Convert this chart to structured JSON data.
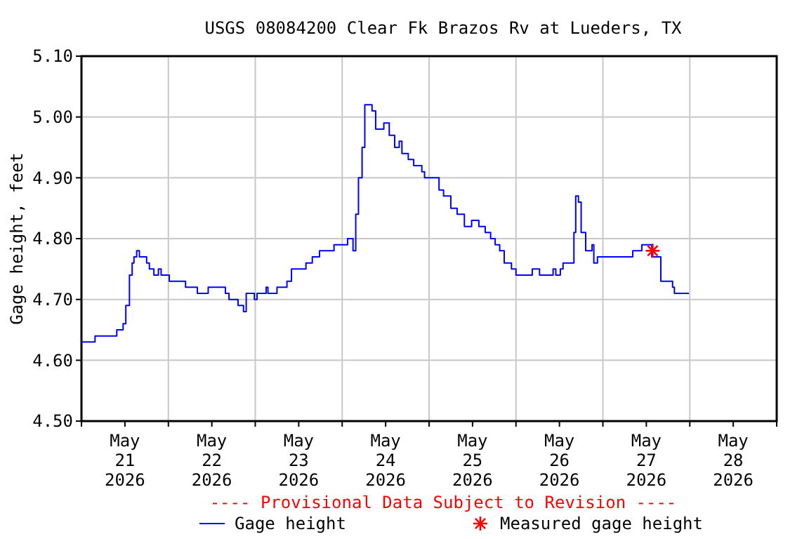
{
  "chart_data": {
    "type": "step",
    "title": "USGS 08084200 Clear Fk Brazos Rv at Lueders, TX",
    "ylabel": "Gage height, feet",
    "annotations": [
      "---- Provisional Data Subject to Revision ----"
    ],
    "xlim": [
      "2026-05-21T00:00",
      "2026-05-29T00:00"
    ],
    "xticks": [
      {
        "value": "2026-05-21T00:00",
        "label": null
      },
      {
        "value": "2026-05-21T12:00",
        "label": "May\n21\n2026"
      },
      {
        "value": "2026-05-22T00:00",
        "label": null
      },
      {
        "value": "2026-05-22T12:00",
        "label": "May\n22\n2026"
      },
      {
        "value": "2026-05-23T00:00",
        "label": null
      },
      {
        "value": "2026-05-23T12:00",
        "label": "May\n23\n2026"
      },
      {
        "value": "2026-05-24T00:00",
        "label": null
      },
      {
        "value": "2026-05-24T12:00",
        "label": "May\n24\n2026"
      },
      {
        "value": "2026-05-25T00:00",
        "label": null
      },
      {
        "value": "2026-05-25T12:00",
        "label": "May\n25\n2026"
      },
      {
        "value": "2026-05-26T00:00",
        "label": null
      },
      {
        "value": "2026-05-26T12:00",
        "label": "May\n26\n2026"
      },
      {
        "value": "2026-05-27T00:00",
        "label": null
      },
      {
        "value": "2026-05-27T12:00",
        "label": "May\n27\n2026"
      },
      {
        "value": "2026-05-28T00:00",
        "label": null
      },
      {
        "value": "2026-05-28T12:00",
        "label": "May\n28\n2026"
      },
      {
        "value": "2026-05-29T00:00",
        "label": null
      }
    ],
    "ylim": [
      4.5,
      5.1
    ],
    "yticks": [
      {
        "value": 4.5,
        "label": "4.50"
      },
      {
        "value": 4.6,
        "label": "4.60"
      },
      {
        "value": 4.7,
        "label": "4.70"
      },
      {
        "value": 4.8,
        "label": "4.80"
      },
      {
        "value": 4.9,
        "label": "4.90"
      },
      {
        "value": 5.0,
        "label": "5.00"
      },
      {
        "value": 5.1,
        "label": "5.10"
      }
    ],
    "grid": true,
    "legend": "bottom",
    "series": [
      {
        "name": "Gage height",
        "color": "#0000ff",
        "marker": "none",
        "x": [
          "2026-05-21T00:00",
          "2026-05-21T03:45",
          "2026-05-21T09:45",
          "2026-05-21T11:30",
          "2026-05-21T12:15",
          "2026-05-21T13:15",
          "2026-05-21T14:00",
          "2026-05-21T14:30",
          "2026-05-21T15:15",
          "2026-05-21T16:00",
          "2026-05-21T18:00",
          "2026-05-21T18:45",
          "2026-05-21T20:00",
          "2026-05-21T21:15",
          "2026-05-21T22:00",
          "2026-05-22T00:15",
          "2026-05-22T04:45",
          "2026-05-22T08:00",
          "2026-05-22T11:00",
          "2026-05-22T15:45",
          "2026-05-22T16:45",
          "2026-05-22T19:15",
          "2026-05-22T20:45",
          "2026-05-22T21:30",
          "2026-05-22T23:45",
          "2026-05-23T00:30",
          "2026-05-23T03:00",
          "2026-05-23T03:30",
          "2026-05-23T06:00",
          "2026-05-23T08:45",
          "2026-05-23T10:00",
          "2026-05-23T14:00",
          "2026-05-23T15:45",
          "2026-05-23T17:45",
          "2026-05-23T21:45",
          "2026-05-24T01:30",
          "2026-05-24T03:00",
          "2026-05-24T03:45",
          "2026-05-24T04:30",
          "2026-05-24T05:30",
          "2026-05-24T06:15",
          "2026-05-24T07:15",
          "2026-05-24T08:15",
          "2026-05-24T09:15",
          "2026-05-24T11:15",
          "2026-05-24T11:30",
          "2026-05-24T13:00",
          "2026-05-24T14:30",
          "2026-05-24T15:45",
          "2026-05-24T16:30",
          "2026-05-24T18:15",
          "2026-05-24T19:45",
          "2026-05-24T22:00",
          "2026-05-24T22:45",
          "2026-05-25T02:00",
          "2026-05-25T02:45",
          "2026-05-25T04:00",
          "2026-05-25T06:00",
          "2026-05-25T07:45",
          "2026-05-25T09:45",
          "2026-05-25T11:45",
          "2026-05-25T13:45",
          "2026-05-25T15:30",
          "2026-05-25T17:00",
          "2026-05-25T18:15",
          "2026-05-25T19:30",
          "2026-05-25T20:45",
          "2026-05-25T22:45",
          "2026-05-26T00:00",
          "2026-05-26T04:30",
          "2026-05-26T06:30",
          "2026-05-26T10:15",
          "2026-05-26T11:00",
          "2026-05-26T12:15",
          "2026-05-26T13:00",
          "2026-05-26T15:30",
          "2026-05-26T16:00",
          "2026-05-26T16:30",
          "2026-05-26T17:15",
          "2026-05-26T18:00",
          "2026-05-26T19:15",
          "2026-05-26T21:00",
          "2026-05-26T21:30",
          "2026-05-26T22:30",
          "2026-05-27T07:30",
          "2026-05-27T08:15",
          "2026-05-27T10:45",
          "2026-05-27T12:30",
          "2026-05-27T13:30",
          "2026-05-27T15:45",
          "2026-05-27T16:00",
          "2026-05-27T18:30",
          "2026-05-27T19:15",
          "2026-05-27T19:45",
          "2026-05-27T23:45"
        ],
        "values": [
          4.63,
          4.64,
          4.65,
          4.66,
          4.69,
          4.74,
          4.76,
          4.77,
          4.78,
          4.77,
          4.76,
          4.75,
          4.74,
          4.75,
          4.74,
          4.73,
          4.72,
          4.71,
          4.72,
          4.71,
          4.7,
          4.69,
          4.68,
          4.71,
          4.7,
          4.71,
          4.72,
          4.71,
          4.72,
          4.73,
          4.75,
          4.76,
          4.77,
          4.78,
          4.79,
          4.8,
          4.78,
          4.84,
          4.9,
          4.95,
          5.02,
          5.02,
          5.01,
          4.98,
          4.98,
          4.99,
          4.97,
          4.95,
          4.96,
          4.94,
          4.93,
          4.92,
          4.91,
          4.9,
          4.9,
          4.88,
          4.87,
          4.85,
          4.84,
          4.82,
          4.83,
          4.82,
          4.81,
          4.8,
          4.79,
          4.78,
          4.76,
          4.75,
          4.74,
          4.75,
          4.74,
          4.75,
          4.74,
          4.75,
          4.76,
          4.76,
          4.81,
          4.87,
          4.86,
          4.81,
          4.78,
          4.79,
          4.76,
          4.77,
          4.77,
          4.78,
          4.79,
          4.79,
          4.77,
          4.77,
          4.73,
          4.73,
          4.72,
          4.71,
          4.71
        ]
      },
      {
        "name": "Measured gage height",
        "type": "scatter",
        "color": "#ff0000",
        "marker": "cross",
        "x": [
          "2026-05-27T13:45"
        ],
        "values": [
          4.78
        ]
      }
    ]
  }
}
